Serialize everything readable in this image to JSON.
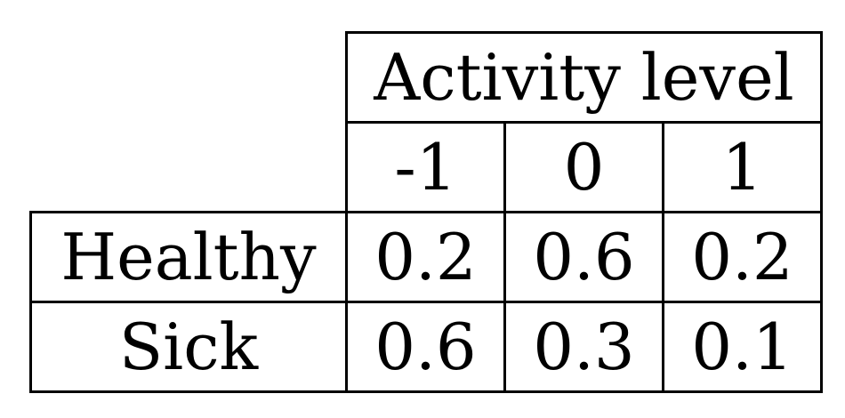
{
  "table": {
    "group_header": "Activity level",
    "columns": [
      "-1",
      "0",
      "1"
    ],
    "rows": [
      {
        "label": "Healthy",
        "values": [
          "0.2",
          "0.6",
          "0.2"
        ]
      },
      {
        "label": "Sick",
        "values": [
          "0.6",
          "0.3",
          "0.1"
        ]
      }
    ],
    "line_color": "#000000"
  }
}
